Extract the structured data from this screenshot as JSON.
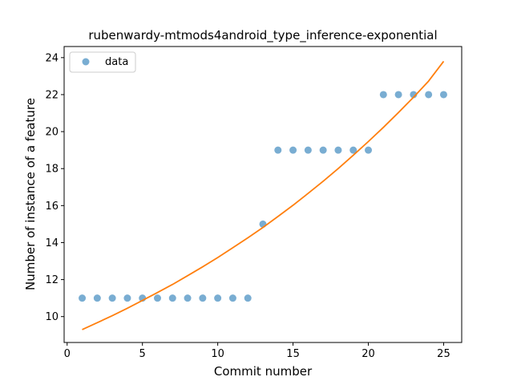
{
  "chart_data": {
    "type": "scatter",
    "title": "rubenwardy-mtmods4android_type_inference-exponential",
    "xlabel": "Commit number",
    "ylabel": "Number of instance of a feature",
    "xlim": [
      -0.2,
      26.2
    ],
    "ylim": [
      8.6,
      24.6
    ],
    "xticks": [
      0,
      5,
      10,
      15,
      20,
      25
    ],
    "yticks": [
      10,
      12,
      14,
      16,
      18,
      20,
      22,
      24
    ],
    "grid": false,
    "legend_position": "top-left",
    "series": [
      {
        "name": "data",
        "kind": "points",
        "color": "#1f77b4",
        "x": [
          1,
          2,
          3,
          4,
          5,
          6,
          7,
          8,
          9,
          10,
          11,
          12,
          13,
          14,
          15,
          16,
          17,
          18,
          19,
          20,
          21,
          22,
          23,
          24,
          25
        ],
        "y": [
          11,
          11,
          11,
          11,
          11,
          11,
          11,
          11,
          11,
          11,
          11,
          11,
          15,
          19,
          19,
          19,
          19,
          19,
          19,
          19,
          22,
          22,
          22,
          22,
          22
        ]
      },
      {
        "kind": "line",
        "color": "#ff7f0e",
        "x": [
          1,
          2,
          3,
          4,
          5,
          6,
          7,
          8,
          9,
          10,
          11,
          12,
          13,
          14,
          15,
          16,
          17,
          18,
          19,
          20,
          21,
          22,
          23,
          24,
          25
        ],
        "y": [
          9.3,
          9.67,
          10.05,
          10.45,
          10.87,
          11.3,
          11.74,
          12.21,
          12.69,
          13.19,
          13.72,
          14.26,
          14.82,
          15.41,
          16.02,
          16.66,
          17.32,
          18.0,
          18.72,
          19.46,
          20.23,
          21.03,
          21.86,
          22.73,
          23.8
        ]
      }
    ]
  }
}
